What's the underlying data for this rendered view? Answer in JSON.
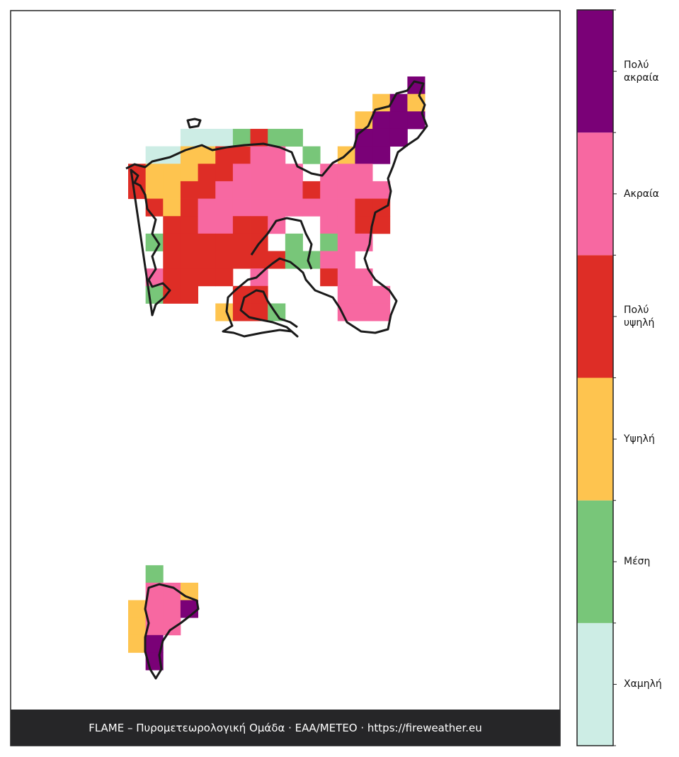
{
  "legend": {
    "levels": [
      {
        "label": "Χαμηλή",
        "color": "#cdede5"
      },
      {
        "label": "Μέση",
        "color": "#78c679"
      },
      {
        "label": "Υψηλή",
        "color": "#fec44f"
      },
      {
        "label": "Πολύ υψηλή",
        "color": "#de2d26"
      },
      {
        "label": "Ακραία",
        "color": "#f768a1"
      },
      {
        "label": "Πολύ ακραία",
        "color": "#7a0177"
      }
    ]
  },
  "map": {
    "cells": [
      "................5.",
      "..............252.",
      ".............2555.",
      "...0001311...555..",
      ".00223344.1.255...",
      "3222334444.444....",
      "322334444434444...",
      ".32344444444433...",
      "..3344334..4433...",
      ".1333333.1.144....",
      "..33333331144.....",
      ".43333.4...344....",
      ".133..33....444...",
      ".....2331...444...",
      "..................",
      "..................",
      "..................",
      "..................",
      "..................",
      "..................",
      "..................",
      "..................",
      "..................",
      "..................",
      "..................",
      "..................",
      "..................",
      "..................",
      ".1................",
      ".442..............",
      "2445..............",
      "244...............",
      "25................",
      ".5................"
    ]
  },
  "footer": "FLAME – Πυρομετεωρολογική Ομάδα · ΕΑΑ/ΜΕΤΕΟ · https://fireweather.eu"
}
